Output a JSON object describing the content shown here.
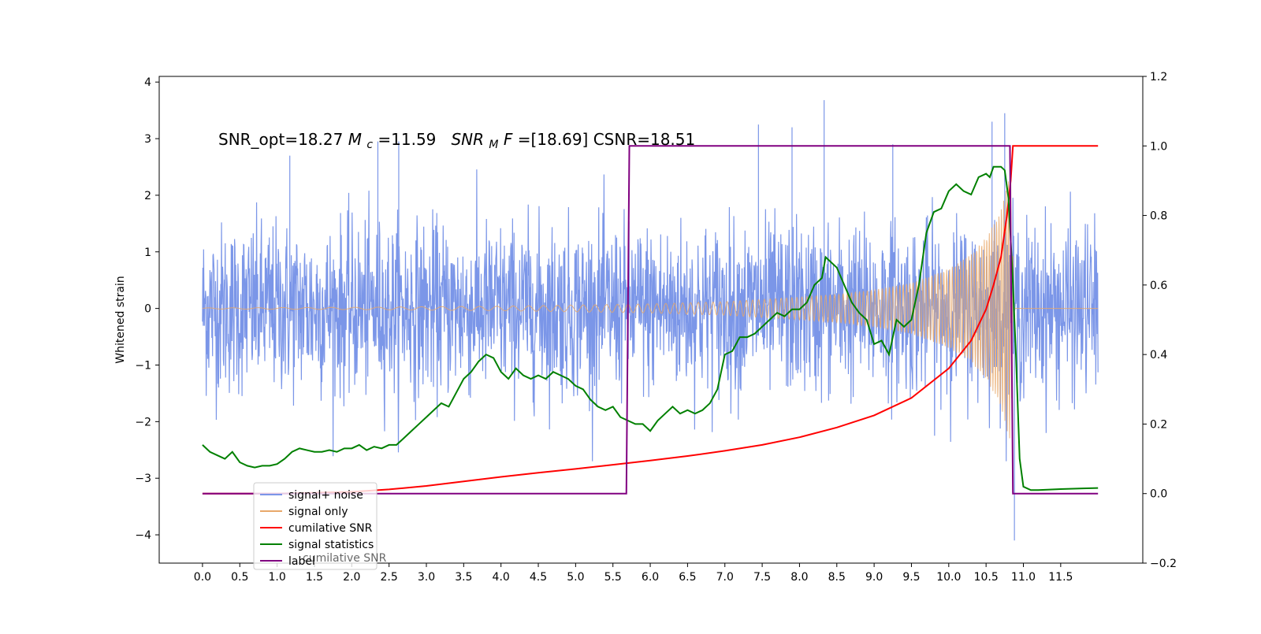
{
  "chart_data": {
    "type": "line",
    "annotation": {
      "prefix": "SNR_opt=18.27 ",
      "mc_symbol": "M",
      "mc_sub": "c",
      "mc_value": "=11.59  ",
      "mf_symbol": "SNR",
      "mf_sub": "M",
      "mf_suffix": "F",
      "mf_value": "=[18.69] CSNR=18.51"
    },
    "ylabel_left": "Whitened strain",
    "xlim": [
      -0.58,
      12.6
    ],
    "ylim_left": [
      -4.5,
      4.1
    ],
    "ylim_right": [
      -0.2,
      1.2
    ],
    "x_ticks": [
      0.0,
      0.5,
      1.0,
      1.5,
      2.0,
      2.5,
      3.0,
      3.5,
      4.0,
      4.5,
      5.0,
      5.5,
      6.0,
      6.5,
      7.0,
      7.5,
      8.0,
      8.5,
      9.0,
      9.5,
      10.0,
      10.5,
      11.0,
      11.5
    ],
    "x_tick_labels": [
      "0.0",
      "0.5",
      "1.0",
      "1.5",
      "2.0",
      "2.5",
      "3.0",
      "3.5",
      "4.0",
      "4.5",
      "5.0",
      "5.5",
      "6.0",
      "6.5",
      "7.0",
      "7.5",
      "8.0",
      "8.5",
      "9.0",
      "9.5",
      "10.0",
      "10.5",
      "11.0",
      "11.5"
    ],
    "y_left_ticks": [
      -4,
      -3,
      -2,
      -1,
      0,
      1,
      2,
      3,
      4
    ],
    "y_left_tick_labels": [
      "−4",
      "−3",
      "−2",
      "−1",
      "0",
      "1",
      "2",
      "3",
      "4"
    ],
    "y_right_ticks": [
      -0.2,
      0.0,
      0.2,
      0.4,
      0.6,
      0.8,
      1.0,
      1.2
    ],
    "y_right_tick_labels": [
      "−0.2",
      "0.0",
      "0.2",
      "0.4",
      "0.6",
      "0.8",
      "1.0",
      "1.2"
    ],
    "grid": false,
    "legend_position": "lower-left",
    "series": [
      {
        "name": "signal+ noise",
        "axis": "left",
        "color": "#7b96e8",
        "description_shape": "noise",
        "x_range": [
          0.0,
          12.0
        ],
        "noise_std": 0.75,
        "notable_peaks": [
          [
            1.17,
            2.7
          ],
          [
            2.35,
            2.95
          ],
          [
            2.63,
            2.95
          ],
          [
            7.45,
            3.25
          ],
          [
            7.9,
            3.2
          ],
          [
            8.33,
            3.68
          ],
          [
            9.25,
            2.9
          ],
          [
            10.58,
            3.3
          ],
          [
            10.75,
            3.45
          ],
          [
            10.88,
            -4.1
          ]
        ]
      },
      {
        "name": "signal only",
        "axis": "left",
        "color": "#e8a86a",
        "description_shape": "chirp envelope",
        "envelope": [
          [
            0.0,
            0.01
          ],
          [
            2.0,
            0.02
          ],
          [
            4.0,
            0.04
          ],
          [
            5.0,
            0.06
          ],
          [
            6.0,
            0.08
          ],
          [
            7.0,
            0.12
          ],
          [
            8.0,
            0.2
          ],
          [
            8.5,
            0.25
          ],
          [
            9.0,
            0.33
          ],
          [
            9.5,
            0.45
          ],
          [
            10.0,
            0.7
          ],
          [
            10.3,
            0.95
          ],
          [
            10.5,
            1.25
          ],
          [
            10.65,
            1.6
          ],
          [
            10.75,
            2.0
          ],
          [
            10.83,
            2.4
          ],
          [
            10.88,
            0.0
          ],
          [
            12.0,
            0.0
          ]
        ]
      },
      {
        "name": "cumilative SNR",
        "axis": "right",
        "color": "#ff0000",
        "points": [
          [
            0.0,
            0.0
          ],
          [
            1.0,
            0.0
          ],
          [
            2.0,
            0.005
          ],
          [
            2.5,
            0.012
          ],
          [
            3.0,
            0.022
          ],
          [
            3.5,
            0.035
          ],
          [
            4.0,
            0.048
          ],
          [
            4.5,
            0.06
          ],
          [
            5.0,
            0.071
          ],
          [
            5.5,
            0.083
          ],
          [
            6.0,
            0.095
          ],
          [
            6.5,
            0.108
          ],
          [
            7.0,
            0.123
          ],
          [
            7.5,
            0.14
          ],
          [
            8.0,
            0.162
          ],
          [
            8.5,
            0.19
          ],
          [
            9.0,
            0.225
          ],
          [
            9.5,
            0.275
          ],
          [
            10.0,
            0.36
          ],
          [
            10.3,
            0.44
          ],
          [
            10.5,
            0.53
          ],
          [
            10.6,
            0.6
          ],
          [
            10.7,
            0.68
          ],
          [
            10.78,
            0.8
          ],
          [
            10.83,
            0.9
          ],
          [
            10.86,
            1.0
          ],
          [
            12.0,
            1.0
          ]
        ]
      },
      {
        "name": "signal statistics",
        "axis": "right",
        "color": "#008000",
        "points": [
          [
            0.0,
            0.14
          ],
          [
            0.1,
            0.12
          ],
          [
            0.2,
            0.11
          ],
          [
            0.3,
            0.1
          ],
          [
            0.4,
            0.12
          ],
          [
            0.5,
            0.09
          ],
          [
            0.6,
            0.08
          ],
          [
            0.7,
            0.075
          ],
          [
            0.8,
            0.08
          ],
          [
            0.9,
            0.08
          ],
          [
            1.0,
            0.085
          ],
          [
            1.1,
            0.1
          ],
          [
            1.2,
            0.12
          ],
          [
            1.3,
            0.13
          ],
          [
            1.4,
            0.125
          ],
          [
            1.5,
            0.12
          ],
          [
            1.6,
            0.12
          ],
          [
            1.7,
            0.125
          ],
          [
            1.8,
            0.12
          ],
          [
            1.9,
            0.13
          ],
          [
            2.0,
            0.13
          ],
          [
            2.1,
            0.14
          ],
          [
            2.2,
            0.125
          ],
          [
            2.3,
            0.135
          ],
          [
            2.4,
            0.13
          ],
          [
            2.5,
            0.14
          ],
          [
            2.6,
            0.14
          ],
          [
            2.7,
            0.16
          ],
          [
            2.8,
            0.18
          ],
          [
            2.9,
            0.2
          ],
          [
            3.0,
            0.22
          ],
          [
            3.1,
            0.24
          ],
          [
            3.2,
            0.26
          ],
          [
            3.3,
            0.25
          ],
          [
            3.4,
            0.29
          ],
          [
            3.5,
            0.33
          ],
          [
            3.6,
            0.35
          ],
          [
            3.7,
            0.38
          ],
          [
            3.8,
            0.4
          ],
          [
            3.9,
            0.39
          ],
          [
            4.0,
            0.35
          ],
          [
            4.1,
            0.33
          ],
          [
            4.2,
            0.36
          ],
          [
            4.3,
            0.34
          ],
          [
            4.4,
            0.33
          ],
          [
            4.5,
            0.34
          ],
          [
            4.6,
            0.33
          ],
          [
            4.7,
            0.35
          ],
          [
            4.8,
            0.34
          ],
          [
            4.9,
            0.33
          ],
          [
            5.0,
            0.31
          ],
          [
            5.1,
            0.3
          ],
          [
            5.2,
            0.27
          ],
          [
            5.3,
            0.25
          ],
          [
            5.4,
            0.24
          ],
          [
            5.5,
            0.25
          ],
          [
            5.6,
            0.22
          ],
          [
            5.7,
            0.21
          ],
          [
            5.8,
            0.2
          ],
          [
            5.9,
            0.2
          ],
          [
            6.0,
            0.18
          ],
          [
            6.1,
            0.21
          ],
          [
            6.2,
            0.23
          ],
          [
            6.3,
            0.25
          ],
          [
            6.4,
            0.23
          ],
          [
            6.5,
            0.24
          ],
          [
            6.6,
            0.23
          ],
          [
            6.7,
            0.24
          ],
          [
            6.8,
            0.26
          ],
          [
            6.9,
            0.3
          ],
          [
            7.0,
            0.4
          ],
          [
            7.1,
            0.41
          ],
          [
            7.2,
            0.45
          ],
          [
            7.3,
            0.45
          ],
          [
            7.4,
            0.46
          ],
          [
            7.5,
            0.48
          ],
          [
            7.6,
            0.5
          ],
          [
            7.7,
            0.52
          ],
          [
            7.8,
            0.51
          ],
          [
            7.9,
            0.53
          ],
          [
            8.0,
            0.53
          ],
          [
            8.1,
            0.55
          ],
          [
            8.2,
            0.6
          ],
          [
            8.3,
            0.62
          ],
          [
            8.35,
            0.68
          ],
          [
            8.5,
            0.65
          ],
          [
            8.6,
            0.6
          ],
          [
            8.7,
            0.55
          ],
          [
            8.8,
            0.52
          ],
          [
            8.9,
            0.5
          ],
          [
            9.0,
            0.43
          ],
          [
            9.1,
            0.44
          ],
          [
            9.2,
            0.4
          ],
          [
            9.3,
            0.5
          ],
          [
            9.4,
            0.48
          ],
          [
            9.5,
            0.5
          ],
          [
            9.6,
            0.6
          ],
          [
            9.7,
            0.75
          ],
          [
            9.8,
            0.81
          ],
          [
            9.9,
            0.82
          ],
          [
            10.0,
            0.87
          ],
          [
            10.1,
            0.89
          ],
          [
            10.2,
            0.87
          ],
          [
            10.3,
            0.86
          ],
          [
            10.4,
            0.91
          ],
          [
            10.5,
            0.92
          ],
          [
            10.55,
            0.91
          ],
          [
            10.6,
            0.94
          ],
          [
            10.7,
            0.94
          ],
          [
            10.75,
            0.93
          ],
          [
            10.8,
            0.85
          ],
          [
            10.85,
            0.65
          ],
          [
            10.9,
            0.4
          ],
          [
            10.95,
            0.1
          ],
          [
            11.0,
            0.02
          ],
          [
            11.1,
            0.01
          ],
          [
            11.2,
            0.01
          ],
          [
            11.5,
            0.013
          ],
          [
            11.8,
            0.015
          ],
          [
            12.0,
            0.016
          ]
        ]
      },
      {
        "name": "label",
        "axis": "right",
        "color": "#800080",
        "points": [
          [
            0.0,
            0.0
          ],
          [
            5.68,
            0.0
          ],
          [
            5.72,
            1.0
          ],
          [
            10.82,
            1.0
          ],
          [
            10.86,
            0.0
          ],
          [
            12.0,
            0.0
          ]
        ]
      }
    ],
    "legend_overlap_text": "cumilative SNR"
  }
}
